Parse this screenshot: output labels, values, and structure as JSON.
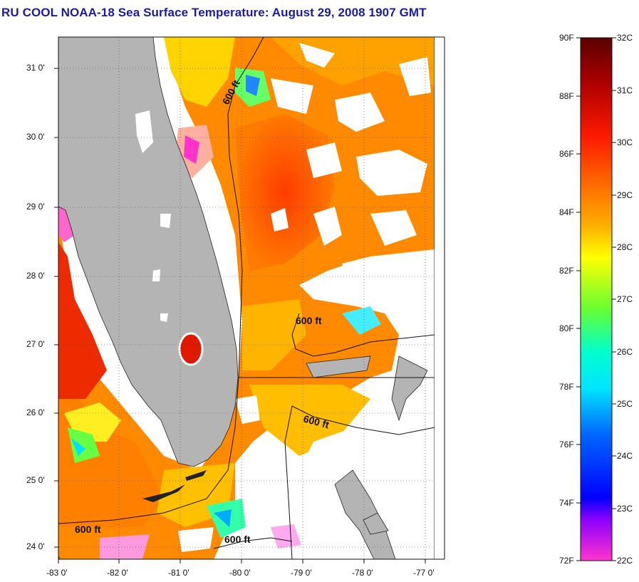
{
  "title": "RU COOL  NOAA-18  Sea Surface Temperature:  August 29, 2008 1907 GMT",
  "map": {
    "lat_ticks": [
      "31 0'",
      "30 0'",
      "29 0'",
      "28 0'",
      "27 0'",
      "26 0'",
      "25 0'",
      "24 0'"
    ],
    "lon_ticks": [
      "-83 0'",
      "-82 0'",
      "-81 0'",
      "-80 0'",
      "-79 0'",
      "-78 0'",
      "-77 0'"
    ],
    "isobath_labels": [
      "600 ft",
      "600 ft",
      "600 ft",
      "600 ft",
      "600 ft"
    ],
    "land_color": "#b4b4b4",
    "cloud_color": "#ffffff"
  },
  "colorbar": {
    "fahrenheit_labels": [
      "90F",
      "88F",
      "86F",
      "84F",
      "82F",
      "80F",
      "78F",
      "76F",
      "74F",
      "72F"
    ],
    "celsius_labels": [
      "32C",
      "31C",
      "30C",
      "29C",
      "28C",
      "27C",
      "26C",
      "25C",
      "24C",
      "23C",
      "22C"
    ],
    "colors": [
      "#5a0000",
      "#b00000",
      "#ff1a00",
      "#ff6a00",
      "#ffb000",
      "#ffff00",
      "#66ff33",
      "#00ffcc",
      "#00e5ff",
      "#0066ff",
      "#0000ff",
      "#8800ff",
      "#ff33cc"
    ]
  }
}
